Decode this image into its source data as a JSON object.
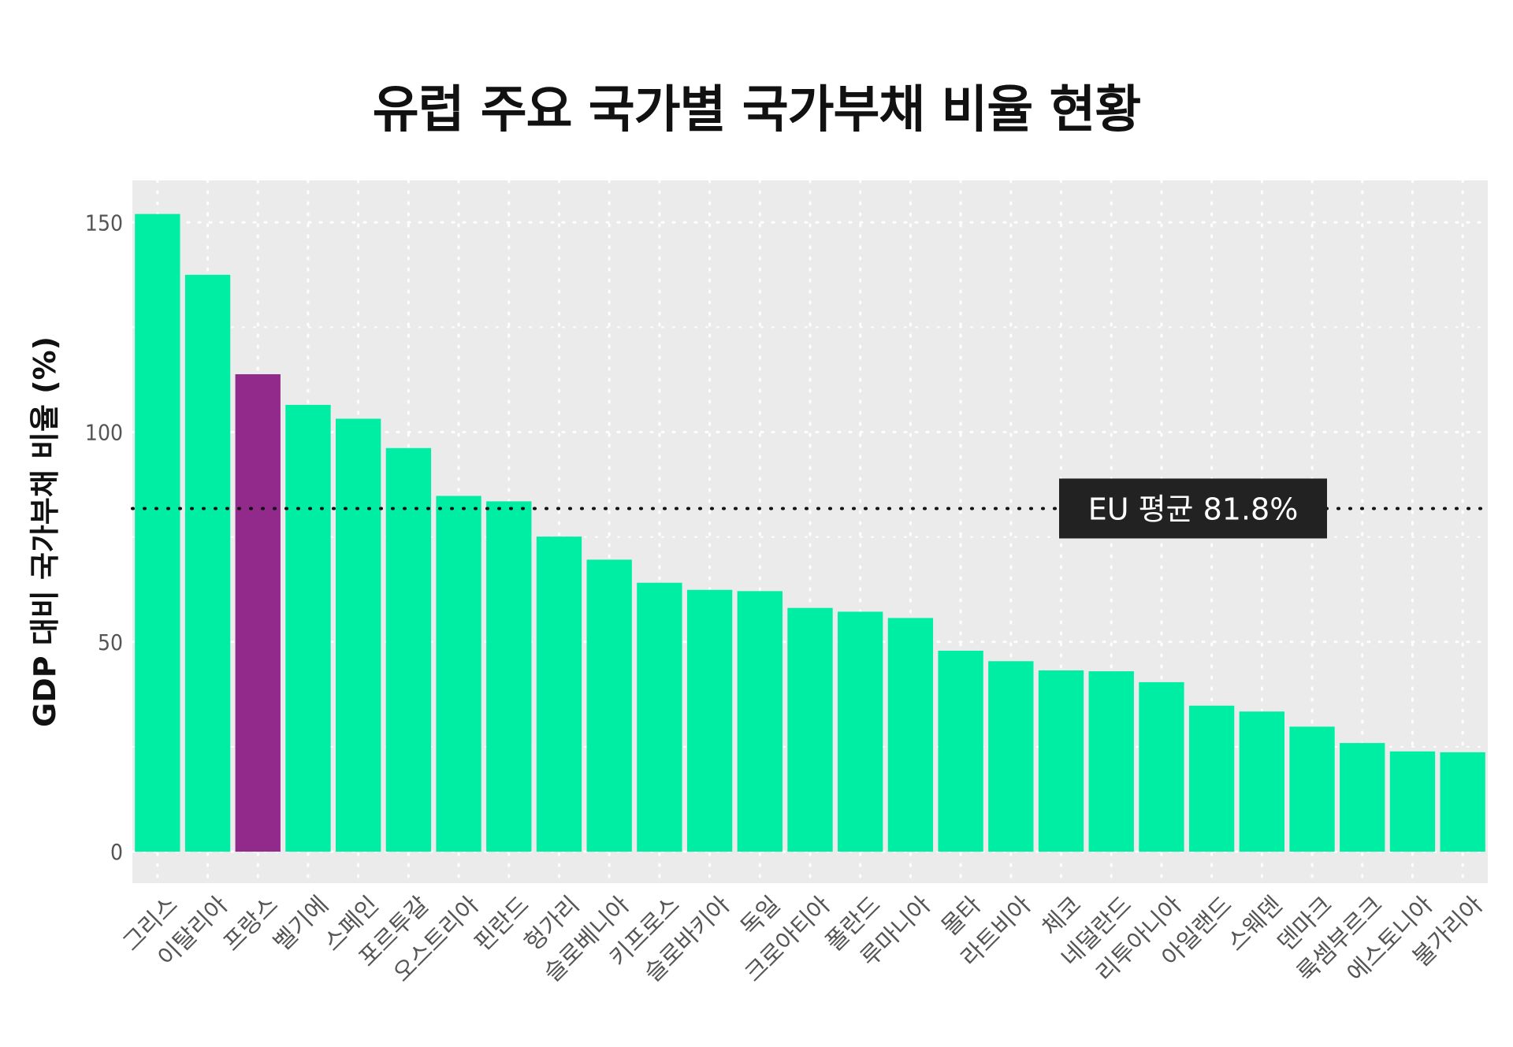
{
  "chart_data": {
    "type": "bar",
    "title": "유럽 주요 국가별 국가부채 비율 현황",
    "ylabel": "GDP 대비 국가부채 비율 (%)",
    "xlabel": "",
    "ylim": [
      -7.5,
      160
    ],
    "yticks": [
      0,
      50,
      100,
      150
    ],
    "grid": "dotted",
    "categories": [
      "그리스",
      "이탈리아",
      "프랑스",
      "벨기에",
      "스페인",
      "포르투갈",
      "오스트리아",
      "핀란드",
      "헝가리",
      "슬로베니아",
      "키프로스",
      "슬로바키아",
      "독일",
      "크로아티아",
      "폴란드",
      "루마니아",
      "몰타",
      "라트비아",
      "체코",
      "네덜란드",
      "리투아니아",
      "아일랜드",
      "스웨덴",
      "덴마크",
      "룩셈부르크",
      "에스토니아",
      "불가리아"
    ],
    "values": [
      152,
      137.5,
      113.8,
      106.5,
      103.2,
      96.2,
      84.8,
      83.5,
      75.1,
      69.6,
      64.1,
      62.4,
      62.1,
      58.1,
      57.2,
      55.7,
      47.9,
      45.4,
      43.2,
      43.0,
      40.4,
      34.8,
      33.4,
      29.8,
      25.9,
      23.9,
      23.7
    ],
    "highlight": "프랑스",
    "colors": {
      "bar": "#00eea3",
      "highlight": "#912a8b",
      "panel": "#ebebeb",
      "grid": "#ffffff",
      "reference_line": "#111111",
      "label_box": "#222222"
    },
    "reference_line": {
      "value": 81.8,
      "label": "EU 평균 81.8%"
    }
  }
}
